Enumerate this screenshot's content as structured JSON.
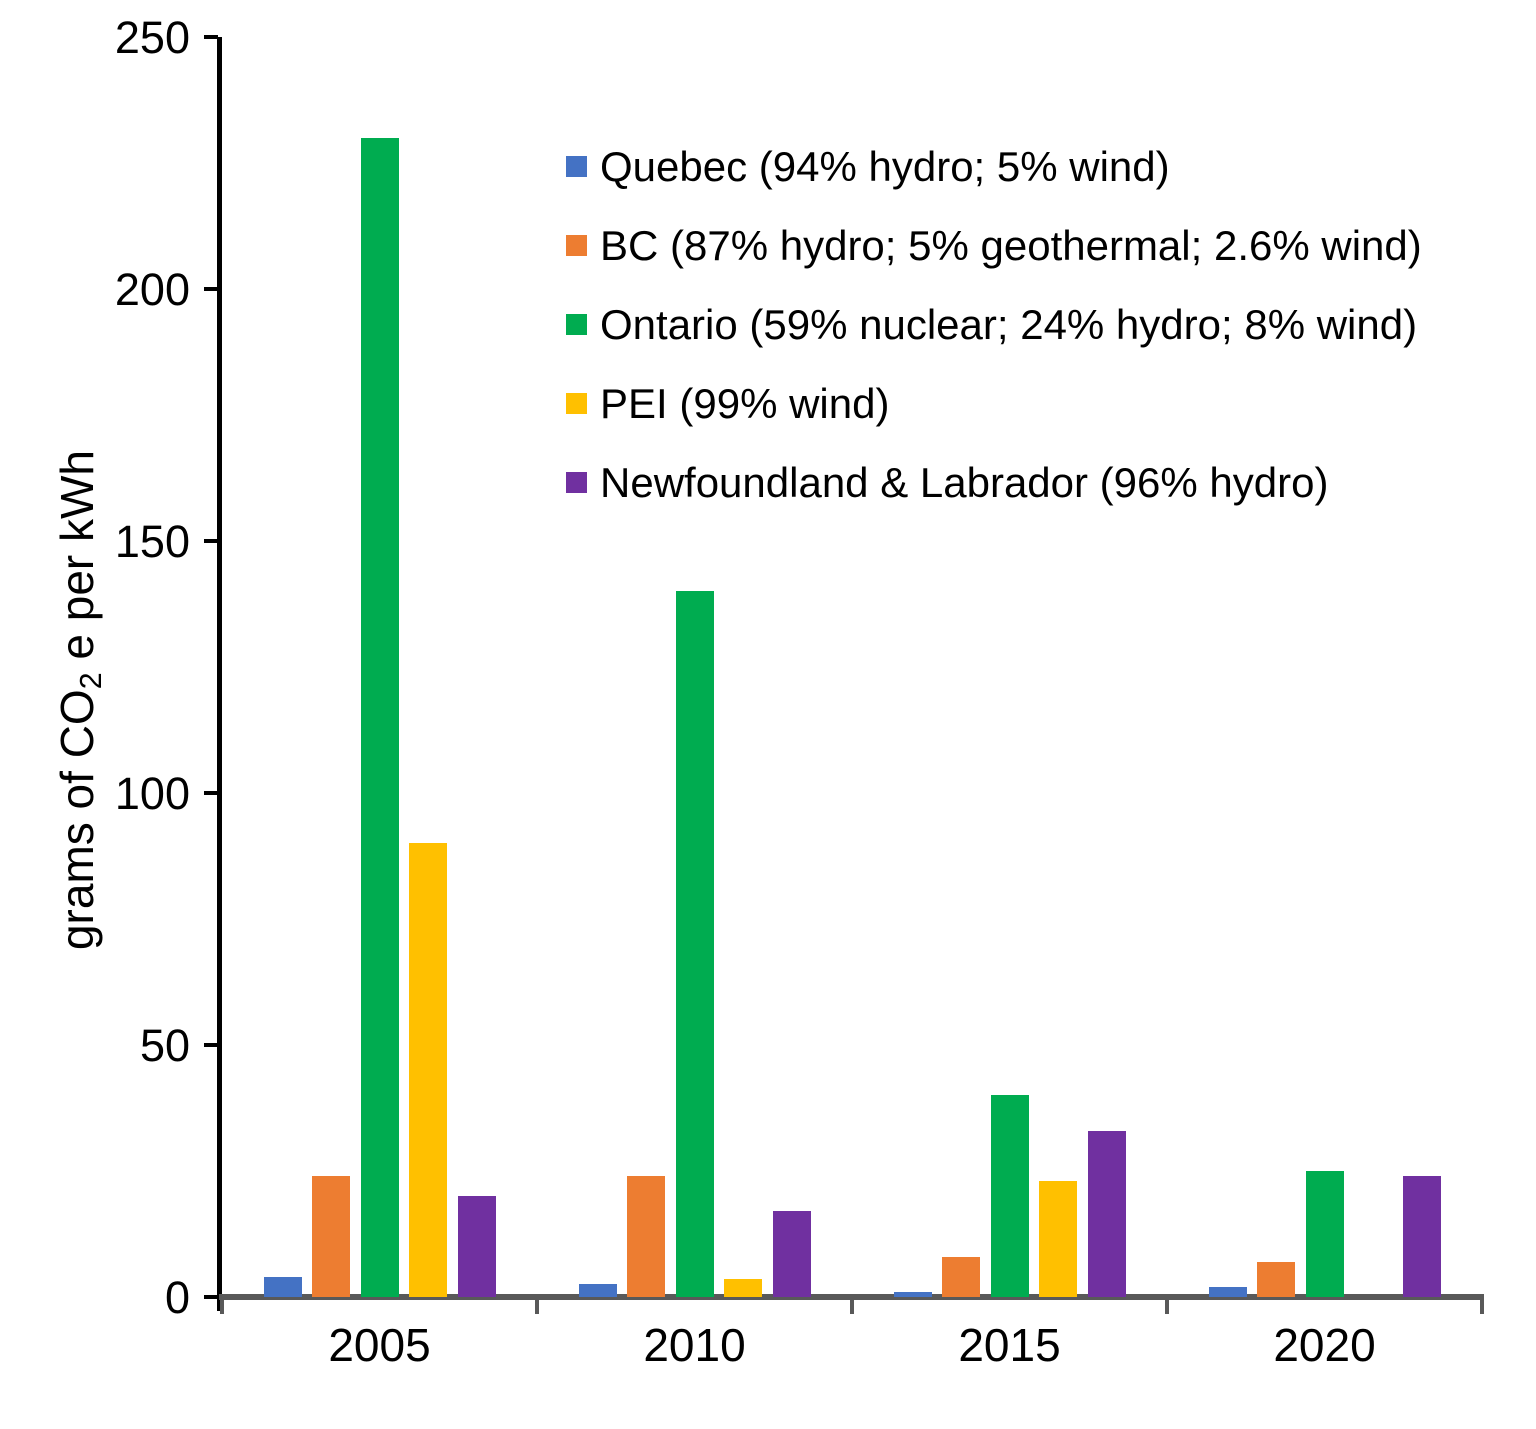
{
  "chart_data": {
    "type": "bar",
    "title": "",
    "xlabel": "",
    "ylabel": {
      "pre": "grams of CO",
      "sub": "2",
      "post": " e per kWh"
    },
    "ylim": [
      0,
      250
    ],
    "y_ticks": [
      0,
      50,
      100,
      150,
      200,
      250
    ],
    "grid": false,
    "legend_position": "inside-upper-right",
    "categories": [
      "2005",
      "2010",
      "2015",
      "2020"
    ],
    "series": [
      {
        "key": "quebec",
        "name": "Quebec (94% hydro; 5% wind)",
        "color": "#4472C4",
        "values": [
          4,
          2.5,
          1,
          2
        ]
      },
      {
        "key": "bc",
        "name": "BC (87% hydro; 5% geothermal; 2.6% wind)",
        "color": "#ED7D31",
        "values": [
          24,
          24,
          8,
          7
        ]
      },
      {
        "key": "ontario",
        "name": "Ontario (59% nuclear; 24% hydro; 8% wind)",
        "color": "#00AC50",
        "values": [
          230,
          140,
          40,
          25
        ]
      },
      {
        "key": "pei",
        "name": "PEI (99% wind)",
        "color": "#FFC000",
        "values": [
          90,
          3.5,
          23,
          0
        ]
      },
      {
        "key": "newfoundland",
        "name": "Newfoundland & Labrador (96% hydro)",
        "color": "#7030A0",
        "values": [
          20,
          17,
          33,
          24
        ]
      }
    ],
    "axis_colors": {
      "y_axis": "#000000",
      "x_axis": "#595959"
    }
  }
}
